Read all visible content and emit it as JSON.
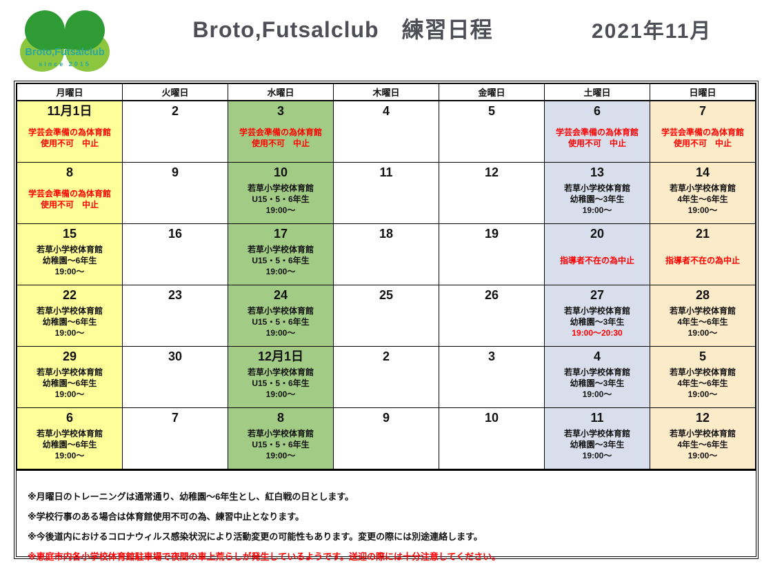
{
  "header": {
    "logo_text": "Broto,Futsalclub",
    "logo_since": "since  2015",
    "title": "Broto,Futsalclub　練習日程",
    "month": "2021年11月"
  },
  "colors": {
    "monday_fill": "#FFFF99",
    "wednesday_fill": "#A2CC85",
    "saturday_fill": "#D8DEEC",
    "sunday_fill": "#FCEBC8",
    "red_text": "#FF0000",
    "logo_dark_green": "#2E9B35",
    "logo_light_green": "#8CC63F",
    "logo_teal": "#2AA79F",
    "title_gray": "#4E4E56"
  },
  "calendar": {
    "weekday_headers": [
      "月曜日",
      "火曜日",
      "水曜日",
      "木曜日",
      "金曜日",
      "土曜日",
      "日曜日"
    ],
    "column_fills": [
      "#FFFF99",
      "#FFFFFF",
      "#A2CC85",
      "#FFFFFF",
      "#FFFFFF",
      "#D8DEEC",
      "#FCEBC8"
    ],
    "weeks": [
      [
        {
          "date": "11月1日",
          "lines": [
            {
              "text": "学芸会準備の為体育館",
              "color": "red"
            },
            {
              "text": "使用不可　中止",
              "color": "red"
            }
          ]
        },
        {
          "date": "2",
          "lines": []
        },
        {
          "date": "3",
          "lines": [
            {
              "text": "学芸会準備の為体育館",
              "color": "red"
            },
            {
              "text": "使用不可　中止",
              "color": "red"
            }
          ]
        },
        {
          "date": "4",
          "lines": []
        },
        {
          "date": "5",
          "lines": []
        },
        {
          "date": "6",
          "lines": [
            {
              "text": "学芸会準備の為体育館",
              "color": "red"
            },
            {
              "text": "使用不可　中止",
              "color": "red"
            }
          ]
        },
        {
          "date": "7",
          "lines": [
            {
              "text": "学芸会準備の為体育館",
              "color": "red"
            },
            {
              "text": "使用不可　中止",
              "color": "red"
            }
          ]
        }
      ],
      [
        {
          "date": "8",
          "lines": [
            {
              "text": "学芸会準備の為体育館",
              "color": "red"
            },
            {
              "text": "使用不可　中止",
              "color": "red"
            }
          ]
        },
        {
          "date": "9",
          "lines": []
        },
        {
          "date": "10",
          "lines": [
            {
              "text": "若草小学校体育館",
              "color": "black"
            },
            {
              "text": "U15・5・6年生",
              "color": "black"
            },
            {
              "text": "19:00～",
              "color": "black"
            }
          ]
        },
        {
          "date": "11",
          "lines": []
        },
        {
          "date": "12",
          "lines": []
        },
        {
          "date": "13",
          "lines": [
            {
              "text": "若草小学校体育館",
              "color": "black"
            },
            {
              "text": "幼稚園～3年生",
              "color": "black"
            },
            {
              "text": "19:00～",
              "color": "black"
            }
          ]
        },
        {
          "date": "14",
          "lines": [
            {
              "text": "若草小学校体育館",
              "color": "black"
            },
            {
              "text": "4年生～6年生",
              "color": "black"
            },
            {
              "text": "19:00～",
              "color": "black"
            }
          ]
        }
      ],
      [
        {
          "date": "15",
          "lines": [
            {
              "text": "若草小学校体育館",
              "color": "black"
            },
            {
              "text": "幼稚園～6年生",
              "color": "black"
            },
            {
              "text": "19:00～",
              "color": "black"
            }
          ]
        },
        {
          "date": "16",
          "lines": []
        },
        {
          "date": "17",
          "lines": [
            {
              "text": "若草小学校体育館",
              "color": "black"
            },
            {
              "text": "U15・5・6年生",
              "color": "black"
            },
            {
              "text": "19:00～",
              "color": "black"
            }
          ]
        },
        {
          "date": "18",
          "lines": []
        },
        {
          "date": "19",
          "lines": []
        },
        {
          "date": "20",
          "lines": [
            {
              "text": "指導者不在の為中止",
              "color": "red"
            }
          ]
        },
        {
          "date": "21",
          "lines": [
            {
              "text": "指導者不在の為中止",
              "color": "red"
            }
          ]
        }
      ],
      [
        {
          "date": "22",
          "lines": [
            {
              "text": "若草小学校体育館",
              "color": "black"
            },
            {
              "text": "幼稚園～6年生",
              "color": "black"
            },
            {
              "text": "19:00～",
              "color": "black"
            }
          ]
        },
        {
          "date": "23",
          "lines": []
        },
        {
          "date": "24",
          "lines": [
            {
              "text": "若草小学校体育館",
              "color": "black"
            },
            {
              "text": "U15・5・6年生",
              "color": "black"
            },
            {
              "text": "19:00～",
              "color": "black"
            }
          ]
        },
        {
          "date": "25",
          "lines": []
        },
        {
          "date": "26",
          "lines": []
        },
        {
          "date": "27",
          "lines": [
            {
              "text": "若草小学校体育館",
              "color": "black"
            },
            {
              "text": "幼稚園～3年生",
              "color": "black"
            },
            {
              "text": "19:00～20:30",
              "color": "red"
            }
          ]
        },
        {
          "date": "28",
          "lines": [
            {
              "text": "若草小学校体育館",
              "color": "black"
            },
            {
              "text": "4年生～6年生",
              "color": "black"
            },
            {
              "text": "19:00～",
              "color": "black"
            }
          ]
        }
      ],
      [
        {
          "date": "29",
          "lines": [
            {
              "text": "若草小学校体育館",
              "color": "black"
            },
            {
              "text": "幼稚園～6年生",
              "color": "black"
            },
            {
              "text": "19:00～",
              "color": "black"
            }
          ]
        },
        {
          "date": "30",
          "lines": []
        },
        {
          "date": "12月1日",
          "lines": [
            {
              "text": "若草小学校体育館",
              "color": "black"
            },
            {
              "text": "U15・5・6年生",
              "color": "black"
            },
            {
              "text": "19:00～",
              "color": "black"
            }
          ]
        },
        {
          "date": "2",
          "lines": []
        },
        {
          "date": "3",
          "lines": []
        },
        {
          "date": "4",
          "lines": [
            {
              "text": "若草小学校体育館",
              "color": "black"
            },
            {
              "text": "幼稚園～3年生",
              "color": "black"
            },
            {
              "text": "19:00～",
              "color": "black"
            }
          ]
        },
        {
          "date": "5",
          "lines": [
            {
              "text": "若草小学校体育館",
              "color": "black"
            },
            {
              "text": "4年生～6年生",
              "color": "black"
            },
            {
              "text": "19:00～",
              "color": "black"
            }
          ]
        }
      ],
      [
        {
          "date": "6",
          "lines": [
            {
              "text": "若草小学校体育館",
              "color": "black"
            },
            {
              "text": "幼稚園～6年生",
              "color": "black"
            },
            {
              "text": "19:00～",
              "color": "black"
            }
          ]
        },
        {
          "date": "7",
          "lines": []
        },
        {
          "date": "8",
          "lines": [
            {
              "text": "若草小学校体育館",
              "color": "black"
            },
            {
              "text": "U15・5・6年生",
              "color": "black"
            },
            {
              "text": "19:00～",
              "color": "black"
            }
          ]
        },
        {
          "date": "9",
          "lines": []
        },
        {
          "date": "10",
          "lines": []
        },
        {
          "date": "11",
          "lines": [
            {
              "text": "若草小学校体育館",
              "color": "black"
            },
            {
              "text": "幼稚園～3年生",
              "color": "black"
            },
            {
              "text": "19:00～",
              "color": "black"
            }
          ]
        },
        {
          "date": "12",
          "lines": [
            {
              "text": "若草小学校体育館",
              "color": "black"
            },
            {
              "text": "4年生～6年生",
              "color": "black"
            },
            {
              "text": "19:00～",
              "color": "black"
            }
          ]
        }
      ]
    ]
  },
  "notes": [
    {
      "text": "※月曜日のトレーニングは通常通り、幼稚園～6年生とし、紅白戦の日とします。",
      "color": "black"
    },
    {
      "text": "※学校行事のある場合は体育館使用不可の為、練習中止となります。",
      "color": "black"
    },
    {
      "text": "※今後道内におけるコロナウィルス感染状況により活動変更の可能性もあります。変更の際には別途連絡します。",
      "color": "black"
    },
    {
      "text": "※恵庭市内各小学校体育館駐車場で夜間の車上荒らしが発生しているようです。送迎の際には十分注意してください。",
      "color": "red"
    }
  ]
}
